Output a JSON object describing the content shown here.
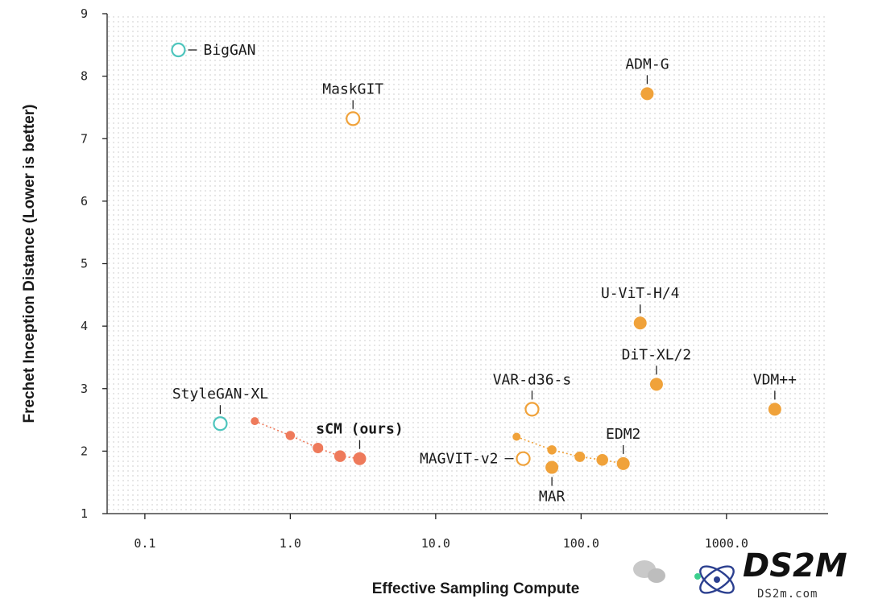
{
  "chart_data": {
    "type": "scatter",
    "title": "",
    "xlabel": "Effective Sampling Compute",
    "ylabel": "Frechet Inception Distance (Lower is better)",
    "xscale": "log",
    "xlim": [
      0.055,
      5000
    ],
    "ylim": [
      1,
      9
    ],
    "xticks": [
      {
        "value": 0.1,
        "label": "0.1"
      },
      {
        "value": 1.0,
        "label": "1.0"
      },
      {
        "value": 10.0,
        "label": "10.0"
      },
      {
        "value": 100.0,
        "label": "100.0"
      },
      {
        "value": 1000.0,
        "label": "1000.0"
      }
    ],
    "yticks": [
      1,
      2,
      3,
      4,
      5,
      6,
      7,
      8,
      9
    ],
    "colors": {
      "gan": "#4ec5bd",
      "orange": "#f0a23a",
      "scm": "#ee7a5b",
      "axis": "#222222",
      "grid_dot": "#d9d9d9"
    },
    "models": [
      {
        "name": "BigGAN",
        "x": 0.17,
        "y": 8.42,
        "style": "hollow",
        "color": "gan",
        "label_pos": "right"
      },
      {
        "name": "StyleGAN-XL",
        "x": 0.33,
        "y": 2.44,
        "style": "hollow",
        "color": "gan",
        "label_pos": "top"
      },
      {
        "name": "MaskGIT",
        "x": 2.7,
        "y": 7.32,
        "style": "hollow",
        "color": "orange",
        "label_pos": "top"
      },
      {
        "name": "ADM-G",
        "x": 285,
        "y": 7.72,
        "style": "filled",
        "color": "orange",
        "label_pos": "top"
      },
      {
        "name": "U-ViT-H/4",
        "x": 255,
        "y": 4.05,
        "style": "filled",
        "color": "orange",
        "label_pos": "top"
      },
      {
        "name": "DiT-XL/2",
        "x": 330,
        "y": 3.07,
        "style": "filled",
        "color": "orange",
        "label_pos": "top"
      },
      {
        "name": "VDM++",
        "x": 2150,
        "y": 2.67,
        "style": "filled",
        "color": "orange",
        "label_pos": "top"
      },
      {
        "name": "VAR-d36-s",
        "x": 46,
        "y": 2.67,
        "style": "hollow",
        "color": "orange",
        "label_pos": "top"
      },
      {
        "name": "MAGVIT-v2",
        "x": 40,
        "y": 1.88,
        "style": "hollow",
        "color": "orange",
        "label_pos": "left"
      },
      {
        "name": "MAR",
        "x": 63,
        "y": 1.74,
        "style": "filled",
        "color": "orange",
        "label_pos": "bottom"
      }
    ],
    "series": [
      {
        "name": "sCM (ours)",
        "color": "scm",
        "label_pos": "top",
        "label_bold": true,
        "points": [
          {
            "x": 0.57,
            "y": 2.48
          },
          {
            "x": 1.0,
            "y": 2.25
          },
          {
            "x": 1.55,
            "y": 2.05
          },
          {
            "x": 2.2,
            "y": 1.92
          },
          {
            "x": 3.0,
            "y": 1.88
          }
        ]
      },
      {
        "name": "EDM2",
        "color": "orange",
        "label_pos": "top",
        "label_bold": false,
        "points": [
          {
            "x": 36,
            "y": 2.23
          },
          {
            "x": 63,
            "y": 2.02
          },
          {
            "x": 98,
            "y": 1.91
          },
          {
            "x": 140,
            "y": 1.86
          },
          {
            "x": 195,
            "y": 1.8
          }
        ]
      }
    ]
  },
  "watermark": {
    "brand": "DS2M",
    "domain": "DS2m.com"
  }
}
